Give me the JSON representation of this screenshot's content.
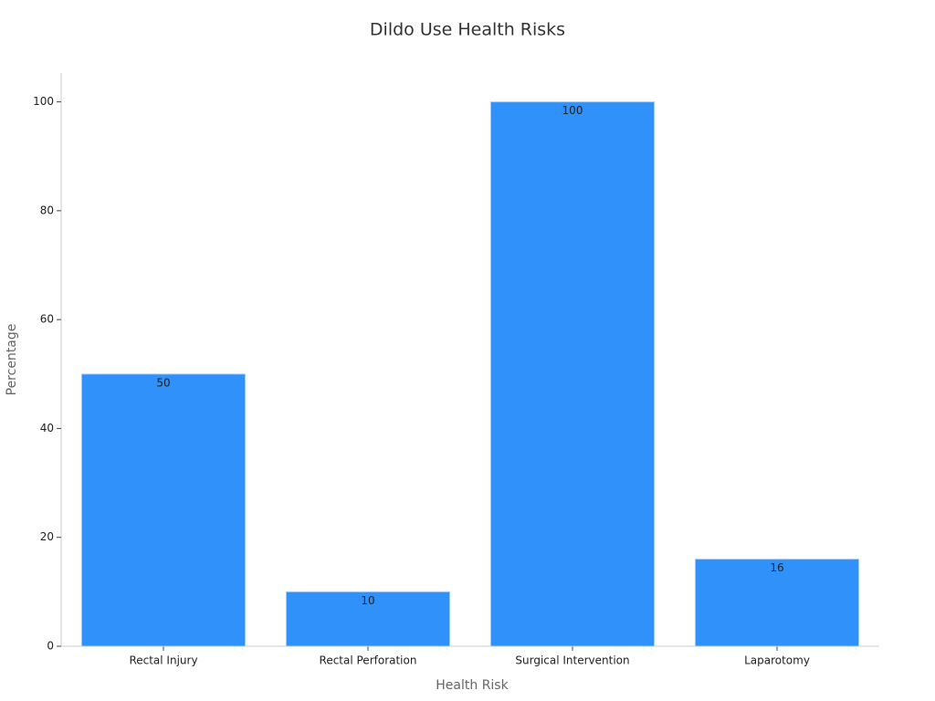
{
  "chart_data": {
    "type": "bar",
    "title": "Dildo Use Health Risks",
    "x_label": "Health Risk",
    "y_label": "Percentage",
    "categories": [
      "Rectal Injury",
      "Rectal Perforation",
      "Surgical Intervention",
      "Laparotomy"
    ],
    "values": [
      50,
      10,
      100,
      16
    ],
    "color": "#2f91f9",
    "ylim": [
      0,
      105.3
    ],
    "yticks": [
      0,
      20,
      40,
      60,
      80,
      100
    ],
    "grid": false
  }
}
